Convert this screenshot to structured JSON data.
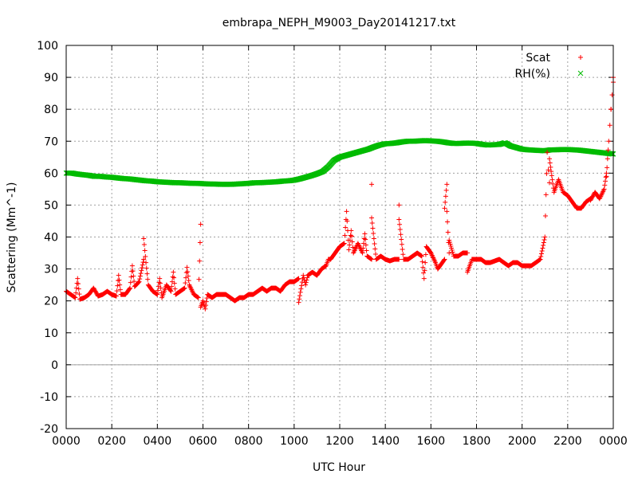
{
  "chart_data": {
    "type": "scatter",
    "title": "embrapa_NEPH_M9003_Day20141217.txt",
    "xlabel": "UTC Hour",
    "ylabel": "Scattering (Mm^-1)",
    "xlim": [
      0,
      24
    ],
    "ylim": [
      -20,
      100
    ],
    "grid": true,
    "legend_position": "top-right",
    "x_ticks": [
      {
        "value": 0,
        "label": "0000"
      },
      {
        "value": 2,
        "label": "0200"
      },
      {
        "value": 4,
        "label": "0400"
      },
      {
        "value": 6,
        "label": "0600"
      },
      {
        "value": 8,
        "label": "0800"
      },
      {
        "value": 10,
        "label": "1000"
      },
      {
        "value": 12,
        "label": "1200"
      },
      {
        "value": 14,
        "label": "1400"
      },
      {
        "value": 16,
        "label": "1600"
      },
      {
        "value": 18,
        "label": "1800"
      },
      {
        "value": 20,
        "label": "2000"
      },
      {
        "value": 22,
        "label": "2200"
      },
      {
        "value": 24,
        "label": "0000"
      }
    ],
    "y_ticks": [
      -20,
      -10,
      0,
      10,
      20,
      30,
      40,
      50,
      60,
      70,
      80,
      90,
      100
    ],
    "zero_line": 0,
    "series": [
      {
        "name": "Scat",
        "marker": "+",
        "color": "#ff0000",
        "points": [
          [
            0.0,
            23
          ],
          [
            0.2,
            22
          ],
          [
            0.4,
            21
          ],
          [
            0.6,
            20.5
          ],
          [
            0.8,
            21
          ],
          [
            1.0,
            22
          ],
          [
            1.2,
            24
          ],
          [
            1.4,
            21.5
          ],
          [
            1.6,
            22
          ],
          [
            1.8,
            23
          ],
          [
            2.0,
            22
          ],
          [
            2.2,
            21.5
          ],
          [
            2.4,
            22
          ],
          [
            2.6,
            22
          ],
          [
            2.8,
            24
          ],
          [
            3.0,
            24.5
          ],
          [
            3.2,
            26
          ],
          [
            3.4,
            33
          ],
          [
            3.5,
            32
          ],
          [
            3.6,
            25
          ],
          [
            3.8,
            23
          ],
          [
            4.0,
            22
          ],
          [
            4.2,
            21
          ],
          [
            4.4,
            25
          ],
          [
            4.6,
            23
          ],
          [
            4.8,
            22
          ],
          [
            5.0,
            23
          ],
          [
            5.2,
            24
          ],
          [
            5.4,
            25
          ],
          [
            5.6,
            22
          ],
          [
            5.8,
            21
          ],
          [
            6.0,
            20
          ],
          [
            6.2,
            22
          ],
          [
            6.4,
            21
          ],
          [
            6.6,
            22
          ],
          [
            6.8,
            22
          ],
          [
            7.0,
            22
          ],
          [
            7.2,
            21
          ],
          [
            7.4,
            20
          ],
          [
            7.6,
            21
          ],
          [
            7.8,
            21
          ],
          [
            8.0,
            22
          ],
          [
            8.2,
            22
          ],
          [
            8.4,
            23
          ],
          [
            8.6,
            24
          ],
          [
            8.8,
            23
          ],
          [
            9.0,
            24
          ],
          [
            9.2,
            24
          ],
          [
            9.4,
            23
          ],
          [
            9.6,
            25
          ],
          [
            9.8,
            26
          ],
          [
            10.0,
            26
          ],
          [
            10.2,
            27
          ],
          [
            10.4,
            28
          ],
          [
            10.6,
            28
          ],
          [
            10.8,
            29
          ],
          [
            11.0,
            28
          ],
          [
            11.2,
            30
          ],
          [
            11.4,
            31
          ],
          [
            11.6,
            33
          ],
          [
            11.8,
            35
          ],
          [
            12.0,
            37
          ],
          [
            12.2,
            38
          ],
          [
            12.4,
            36
          ],
          [
            12.6,
            35
          ],
          [
            12.8,
            38
          ],
          [
            13.0,
            35
          ],
          [
            13.2,
            34
          ],
          [
            13.4,
            33
          ],
          [
            13.6,
            33
          ],
          [
            13.8,
            34
          ],
          [
            14.0,
            33
          ],
          [
            14.2,
            32.5
          ],
          [
            14.4,
            33
          ],
          [
            14.6,
            33
          ],
          [
            14.8,
            33
          ],
          [
            15.0,
            33
          ],
          [
            15.2,
            34
          ],
          [
            15.4,
            35
          ],
          [
            15.6,
            34
          ],
          [
            15.8,
            37
          ],
          [
            16.0,
            35
          ],
          [
            16.2,
            32
          ],
          [
            16.4,
            31
          ],
          [
            16.6,
            33
          ],
          [
            16.8,
            35
          ],
          [
            17.0,
            34
          ],
          [
            17.2,
            34
          ],
          [
            17.4,
            35
          ],
          [
            17.6,
            35
          ],
          [
            17.8,
            33
          ],
          [
            18.0,
            33
          ],
          [
            18.2,
            33
          ],
          [
            18.4,
            32
          ],
          [
            18.6,
            32
          ],
          [
            18.8,
            32.5
          ],
          [
            19.0,
            33
          ],
          [
            19.2,
            32
          ],
          [
            19.4,
            31
          ],
          [
            19.6,
            32
          ],
          [
            19.8,
            32
          ],
          [
            20.0,
            31
          ],
          [
            20.2,
            31
          ],
          [
            20.4,
            31
          ],
          [
            20.6,
            32
          ],
          [
            20.8,
            33
          ],
          [
            21.0,
            40
          ],
          [
            21.2,
            57
          ],
          [
            21.4,
            54
          ],
          [
            21.6,
            58
          ],
          [
            21.8,
            54
          ],
          [
            22.0,
            53
          ],
          [
            22.2,
            51
          ],
          [
            22.4,
            49
          ],
          [
            22.6,
            49
          ],
          [
            22.8,
            51
          ],
          [
            23.0,
            52
          ],
          [
            23.2,
            54
          ],
          [
            23.4,
            52
          ],
          [
            23.6,
            55
          ],
          [
            23.7,
            60
          ],
          [
            23.8,
            70
          ],
          [
            23.9,
            80
          ],
          [
            24.0,
            90
          ],
          [
            0.5,
            27
          ],
          [
            2.3,
            28
          ],
          [
            2.9,
            31
          ],
          [
            3.4,
            39.5
          ],
          [
            4.1,
            27
          ],
          [
            4.7,
            29
          ],
          [
            5.3,
            30.5
          ],
          [
            5.9,
            44
          ],
          [
            5.9,
            18
          ],
          [
            6.1,
            17.5
          ],
          [
            10.2,
            19.5
          ],
          [
            10.5,
            25
          ],
          [
            11.5,
            33
          ],
          [
            12.3,
            48
          ],
          [
            12.5,
            42
          ],
          [
            13.1,
            41
          ],
          [
            13.4,
            56.5
          ],
          [
            13.4,
            46
          ],
          [
            14.6,
            50
          ],
          [
            14.6,
            45.5
          ],
          [
            15.7,
            27
          ],
          [
            16.3,
            30
          ],
          [
            16.7,
            56.5
          ],
          [
            16.6,
            49
          ],
          [
            16.7,
            48
          ],
          [
            16.8,
            39
          ],
          [
            17.6,
            29
          ],
          [
            21.15,
            61
          ],
          [
            21.1,
            66.5
          ],
          [
            21.2,
            64.5
          ],
          [
            23.0,
            51.5
          ],
          [
            23.7,
            59
          ],
          [
            23.9,
            80
          ],
          [
            24.0,
            88.5
          ],
          [
            23.95,
            84.5
          ],
          [
            23.85,
            75
          ]
        ]
      },
      {
        "name": "RH(%)",
        "marker": "x",
        "color": "#00bb00",
        "points": [
          [
            0.0,
            60
          ],
          [
            0.25,
            60
          ],
          [
            0.5,
            59.7
          ],
          [
            0.75,
            59.5
          ],
          [
            1.0,
            59.3
          ],
          [
            1.25,
            59
          ],
          [
            1.5,
            59
          ],
          [
            1.75,
            58.8
          ],
          [
            2.0,
            58.7
          ],
          [
            2.25,
            58.5
          ],
          [
            2.5,
            58.3
          ],
          [
            2.75,
            58.2
          ],
          [
            3.0,
            58
          ],
          [
            3.25,
            57.8
          ],
          [
            3.5,
            57.6
          ],
          [
            3.75,
            57.5
          ],
          [
            4.0,
            57.3
          ],
          [
            4.25,
            57.2
          ],
          [
            4.5,
            57.1
          ],
          [
            4.75,
            57
          ],
          [
            5.0,
            57
          ],
          [
            5.25,
            56.9
          ],
          [
            5.5,
            56.8
          ],
          [
            5.75,
            56.8
          ],
          [
            6.0,
            56.7
          ],
          [
            6.25,
            56.6
          ],
          [
            6.5,
            56.6
          ],
          [
            6.75,
            56.5
          ],
          [
            7.0,
            56.5
          ],
          [
            7.25,
            56.5
          ],
          [
            7.5,
            56.6
          ],
          [
            7.75,
            56.7
          ],
          [
            8.0,
            56.8
          ],
          [
            8.25,
            57
          ],
          [
            8.5,
            57
          ],
          [
            8.75,
            57.1
          ],
          [
            9.0,
            57.2
          ],
          [
            9.25,
            57.3
          ],
          [
            9.5,
            57.5
          ],
          [
            9.75,
            57.6
          ],
          [
            10.0,
            57.8
          ],
          [
            10.25,
            58.2
          ],
          [
            10.5,
            58.7
          ],
          [
            10.75,
            59.2
          ],
          [
            11.0,
            59.8
          ],
          [
            11.25,
            60.5
          ],
          [
            11.5,
            62
          ],
          [
            11.75,
            64
          ],
          [
            12.0,
            65
          ],
          [
            12.25,
            65.5
          ],
          [
            12.5,
            66
          ],
          [
            12.75,
            66.5
          ],
          [
            13.0,
            67
          ],
          [
            13.25,
            67.5
          ],
          [
            13.5,
            68.2
          ],
          [
            13.75,
            68.8
          ],
          [
            14.0,
            69.2
          ],
          [
            14.25,
            69.3
          ],
          [
            14.5,
            69.5
          ],
          [
            14.75,
            69.8
          ],
          [
            15.0,
            70
          ],
          [
            15.25,
            70
          ],
          [
            15.5,
            70.1
          ],
          [
            15.75,
            70.2
          ],
          [
            16.0,
            70.1
          ],
          [
            16.25,
            70
          ],
          [
            16.5,
            69.8
          ],
          [
            16.75,
            69.5
          ],
          [
            17.0,
            69.3
          ],
          [
            17.25,
            69.3
          ],
          [
            17.5,
            69.4
          ],
          [
            17.75,
            69.4
          ],
          [
            18.0,
            69.3
          ],
          [
            18.25,
            69
          ],
          [
            18.5,
            68.8
          ],
          [
            18.75,
            68.9
          ],
          [
            19.0,
            69
          ],
          [
            19.25,
            69.5
          ],
          [
            19.5,
            68.5
          ],
          [
            19.75,
            68
          ],
          [
            20.0,
            67.5
          ],
          [
            20.25,
            67.3
          ],
          [
            20.5,
            67.2
          ],
          [
            20.75,
            67.1
          ],
          [
            21.0,
            67
          ],
          [
            21.25,
            67.3
          ],
          [
            21.5,
            67.3
          ],
          [
            21.75,
            67.4
          ],
          [
            22.0,
            67.4
          ],
          [
            22.25,
            67.3
          ],
          [
            22.5,
            67.2
          ],
          [
            22.75,
            67
          ],
          [
            23.0,
            66.8
          ],
          [
            23.25,
            66.6
          ],
          [
            23.5,
            66.4
          ],
          [
            23.75,
            66.2
          ],
          [
            24.0,
            66
          ]
        ]
      }
    ]
  }
}
